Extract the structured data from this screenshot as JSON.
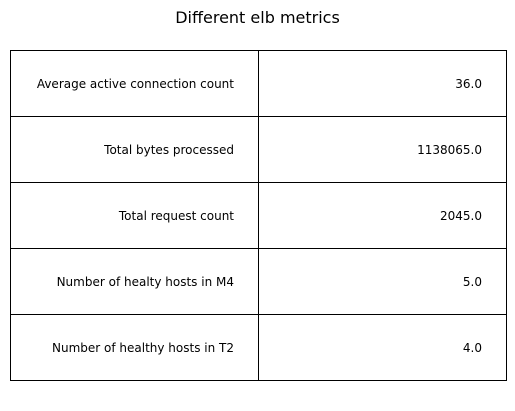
{
  "chart_data": {
    "type": "table",
    "title": "Different elb metrics",
    "rows": [
      {
        "metric": "Average active connection count",
        "value": "36.0"
      },
      {
        "metric": "Total bytes processed",
        "value": "1138065.0"
      },
      {
        "metric": "Total request count",
        "value": "2045.0"
      },
      {
        "metric": "Number of healty hosts in M4",
        "value": "5.0"
      },
      {
        "metric": "Number of healthy hosts in T2",
        "value": "4.0"
      }
    ]
  }
}
